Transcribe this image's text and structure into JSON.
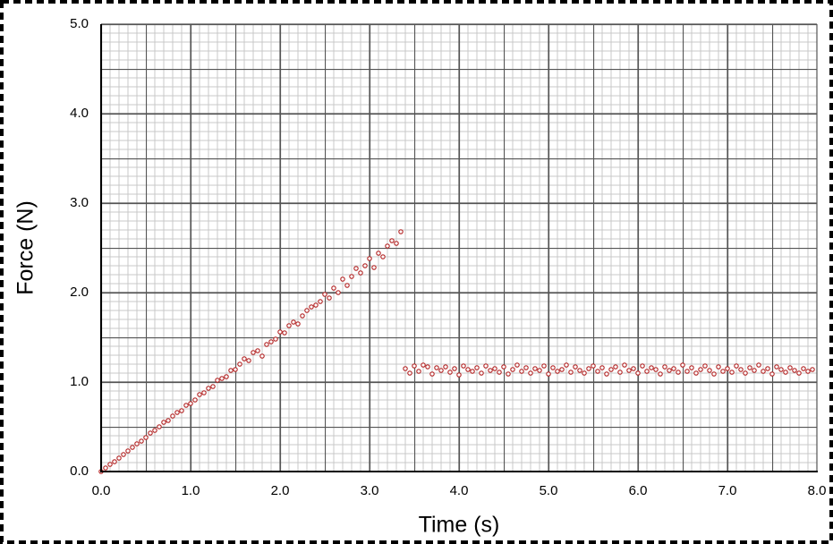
{
  "chart_data": {
    "type": "scatter",
    "x_label": "Time (s)",
    "y_label": "Force (N)",
    "xlim": [
      0,
      8
    ],
    "ylim": [
      0,
      5
    ],
    "xticks": [
      {
        "value": 0,
        "label": "0.0"
      },
      {
        "value": 1,
        "label": "1.0"
      },
      {
        "value": 2,
        "label": "2.0"
      },
      {
        "value": 3,
        "label": "3.0"
      },
      {
        "value": 4,
        "label": "4.0"
      },
      {
        "value": 5,
        "label": "5.0"
      },
      {
        "value": 6,
        "label": "6.0"
      },
      {
        "value": 7,
        "label": "7.0"
      },
      {
        "value": 8,
        "label": "8.0"
      }
    ],
    "yticks": [
      {
        "value": 0,
        "label": "0.0"
      },
      {
        "value": 1,
        "label": "1.0"
      },
      {
        "value": 2,
        "label": "2.0"
      },
      {
        "value": 3,
        "label": "3.0"
      },
      {
        "value": 4,
        "label": "4.0"
      },
      {
        "value": 5,
        "label": "5.0"
      }
    ],
    "grid": true,
    "color": "#b22222",
    "x": [
      0,
      0.05,
      0.1,
      0.15,
      0.2,
      0.25,
      0.3,
      0.35,
      0.4,
      0.45,
      0.5,
      0.55,
      0.6,
      0.65,
      0.7,
      0.75,
      0.8,
      0.85,
      0.9,
      0.95,
      1.0,
      1.05,
      1.1,
      1.15,
      1.2,
      1.25,
      1.3,
      1.35,
      1.4,
      1.45,
      1.5,
      1.55,
      1.6,
      1.65,
      1.7,
      1.75,
      1.8,
      1.85,
      1.9,
      1.95,
      2.0,
      2.05,
      2.1,
      2.15,
      2.2,
      2.25,
      2.3,
      2.35,
      2.4,
      2.45,
      2.5,
      2.55,
      2.6,
      2.65,
      2.7,
      2.75,
      2.8,
      2.85,
      2.9,
      2.95,
      3.0,
      3.05,
      3.1,
      3.15,
      3.2,
      3.25,
      3.3,
      3.35,
      3.4,
      3.45,
      3.5,
      3.55,
      3.6,
      3.65,
      3.7,
      3.75,
      3.8,
      3.85,
      3.9,
      3.95,
      4.0,
      4.05,
      4.1,
      4.15,
      4.2,
      4.25,
      4.3,
      4.35,
      4.4,
      4.45,
      4.5,
      4.55,
      4.6,
      4.65,
      4.7,
      4.75,
      4.8,
      4.85,
      4.9,
      4.95,
      5.0,
      5.05,
      5.1,
      5.15,
      5.2,
      5.25,
      5.3,
      5.35,
      5.4,
      5.45,
      5.5,
      5.55,
      5.6,
      5.65,
      5.7,
      5.75,
      5.8,
      5.85,
      5.9,
      5.95,
      6.0,
      6.05,
      6.1,
      6.15,
      6.2,
      6.25,
      6.3,
      6.35,
      6.4,
      6.45,
      6.5,
      6.55,
      6.6,
      6.65,
      6.7,
      6.75,
      6.8,
      6.85,
      6.9,
      6.95,
      7.0,
      7.05,
      7.1,
      7.15,
      7.2,
      7.25,
      7.3,
      7.35,
      7.4,
      7.45,
      7.5,
      7.55,
      7.6,
      7.65,
      7.7,
      7.75,
      7.8,
      7.85,
      7.9,
      7.95
    ],
    "values": [
      0.0,
      0.04,
      0.08,
      0.11,
      0.15,
      0.19,
      0.23,
      0.27,
      0.31,
      0.34,
      0.38,
      0.43,
      0.46,
      0.5,
      0.55,
      0.57,
      0.62,
      0.66,
      0.68,
      0.74,
      0.76,
      0.8,
      0.86,
      0.88,
      0.93,
      0.95,
      1.02,
      1.04,
      1.06,
      1.13,
      1.14,
      1.2,
      1.26,
      1.24,
      1.33,
      1.35,
      1.29,
      1.42,
      1.45,
      1.48,
      1.56,
      1.55,
      1.63,
      1.67,
      1.65,
      1.74,
      1.8,
      1.84,
      1.86,
      1.9,
      1.98,
      1.94,
      2.05,
      2.0,
      2.15,
      2.08,
      2.18,
      2.27,
      2.22,
      2.3,
      2.38,
      2.28,
      2.44,
      2.4,
      2.52,
      2.58,
      2.55,
      2.68,
      1.15,
      1.1,
      1.18,
      1.12,
      1.19,
      1.17,
      1.09,
      1.16,
      1.13,
      1.17,
      1.11,
      1.15,
      1.08,
      1.18,
      1.14,
      1.12,
      1.16,
      1.1,
      1.18,
      1.13,
      1.15,
      1.11,
      1.17,
      1.09,
      1.14,
      1.19,
      1.12,
      1.16,
      1.1,
      1.15,
      1.13,
      1.18,
      1.09,
      1.16,
      1.12,
      1.14,
      1.19,
      1.11,
      1.17,
      1.13,
      1.1,
      1.15,
      1.18,
      1.12,
      1.16,
      1.09,
      1.14,
      1.17,
      1.11,
      1.19,
      1.13,
      1.15,
      1.1,
      1.18,
      1.12,
      1.16,
      1.14,
      1.09,
      1.17,
      1.13,
      1.15,
      1.11,
      1.19,
      1.12,
      1.16,
      1.1,
      1.14,
      1.18,
      1.13,
      1.09,
      1.17,
      1.12,
      1.15,
      1.11,
      1.18,
      1.14,
      1.1,
      1.16,
      1.13,
      1.19,
      1.12,
      1.15,
      1.09,
      1.17,
      1.14,
      1.11,
      1.16,
      1.13,
      1.1,
      1.15,
      1.12,
      1.14
    ]
  }
}
